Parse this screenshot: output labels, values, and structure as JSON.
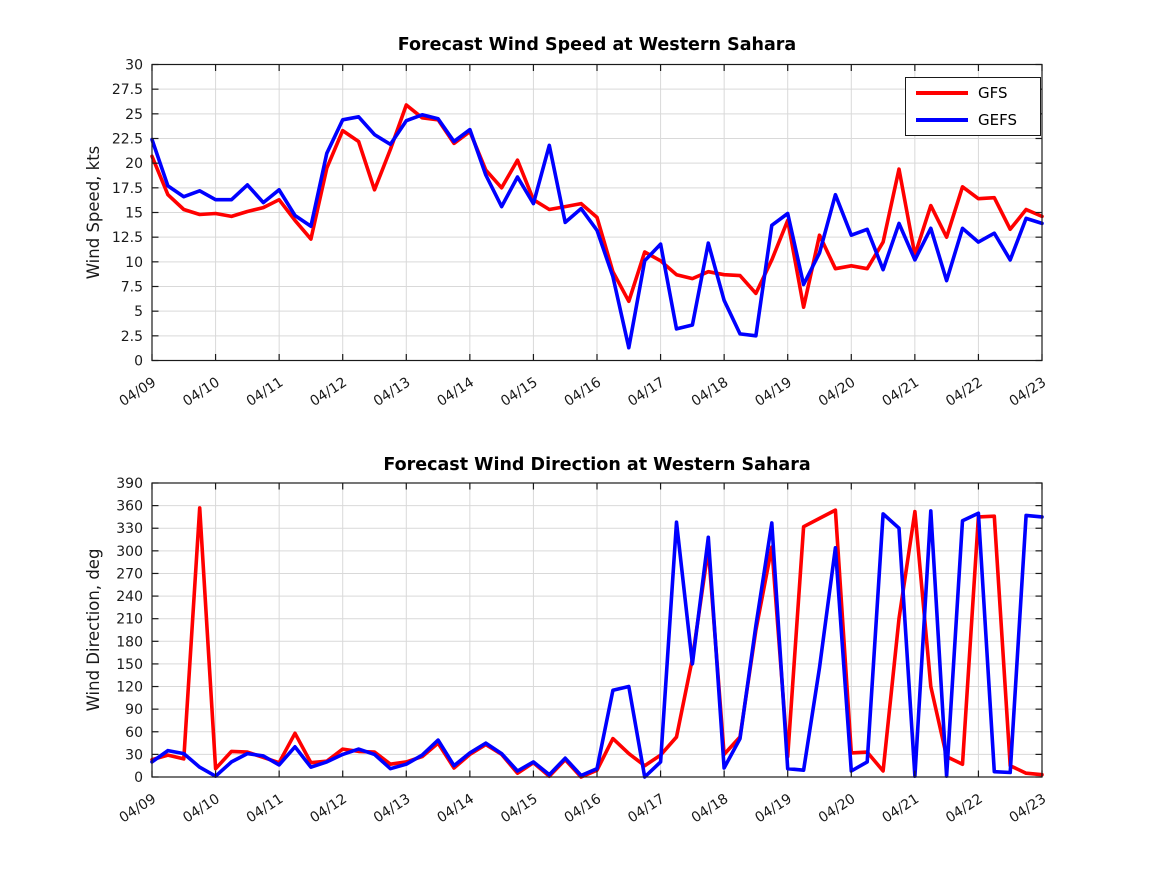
{
  "figure": {
    "background": "#ffffff",
    "accent_red": "#FF0000",
    "accent_blue": "#0000FF"
  },
  "chart_data": [
    {
      "type": "line",
      "title": "Forecast Wind Speed at Western Sahara",
      "ylabel": "Wind Speed, kts",
      "xlabel": "",
      "ylim": [
        0,
        30
      ],
      "ytick_labels": [
        "0",
        "2.5",
        "5",
        "7.5",
        "10",
        "12.5",
        "15",
        "17.5",
        "20",
        "22.5",
        "25",
        "27.5",
        "30"
      ],
      "x_tick_labels": [
        "04/09",
        "04/10",
        "04/11",
        "04/12",
        "04/13",
        "04/14",
        "04/15",
        "04/16",
        "04/17",
        "04/18",
        "04/19",
        "04/20",
        "04/21",
        "04/22",
        "04/23"
      ],
      "time_step_hours": 6,
      "grid": true,
      "legend": {
        "position": "top-right",
        "entries": [
          {
            "label": "GFS",
            "color": "#FF0000"
          },
          {
            "label": "GEFS",
            "color": "#0000FF"
          }
        ]
      },
      "series": [
        {
          "name": "GFS",
          "color": "#FF0000",
          "values": [
            20.7,
            16.8,
            15.3,
            14.8,
            14.9,
            14.6,
            15.1,
            15.5,
            16.3,
            14.2,
            12.3,
            19.5,
            23.3,
            22.2,
            17.3,
            21.4,
            25.9,
            24.6,
            24.4,
            22.0,
            23.2,
            19.3,
            17.5,
            20.3,
            16.3,
            15.3,
            15.6,
            15.9,
            14.5,
            9.0,
            6.0,
            11.0,
            10.1,
            8.7,
            8.3,
            9.0,
            8.7,
            8.6,
            6.8,
            10.2,
            14.2,
            5.4,
            12.7,
            9.3,
            9.6,
            9.3,
            12.0,
            19.4,
            10.7,
            15.7,
            12.5,
            17.6,
            16.4,
            16.5,
            13.3,
            15.3,
            14.6
          ]
        },
        {
          "name": "GEFS",
          "color": "#0000FF",
          "values": [
            22.4,
            17.7,
            16.6,
            17.2,
            16.3,
            16.3,
            17.8,
            16.0,
            17.3,
            14.7,
            13.6,
            21.0,
            24.4,
            24.7,
            22.9,
            21.9,
            24.3,
            24.9,
            24.5,
            22.2,
            23.4,
            18.8,
            15.6,
            18.6,
            15.9,
            21.8,
            14.0,
            15.4,
            13.2,
            8.5,
            1.3,
            10.1,
            11.8,
            3.2,
            3.6,
            11.9,
            6.1,
            2.7,
            2.5,
            13.7,
            14.9,
            7.7,
            10.9,
            16.8,
            12.7,
            13.3,
            9.2,
            13.9,
            10.2,
            13.4,
            8.1,
            13.4,
            12.0,
            12.9,
            10.2,
            14.4,
            13.9
          ]
        }
      ]
    },
    {
      "type": "line",
      "title": "Forecast Wind Direction at Western Sahara",
      "ylabel": "Wind Direction, deg",
      "xlabel": "",
      "ylim": [
        0,
        390
      ],
      "ytick_labels": [
        "0",
        "30",
        "60",
        "90",
        "120",
        "150",
        "180",
        "210",
        "240",
        "270",
        "300",
        "330",
        "360",
        "390"
      ],
      "x_tick_labels": [
        "04/09",
        "04/10",
        "04/11",
        "04/12",
        "04/13",
        "04/14",
        "04/15",
        "04/16",
        "04/17",
        "04/18",
        "04/19",
        "04/20",
        "04/21",
        "04/22",
        "04/23"
      ],
      "time_step_hours": 6,
      "grid": true,
      "series": [
        {
          "name": "GFS",
          "color": "#FF0000",
          "values": [
            23,
            29,
            24,
            357,
            11,
            34,
            33,
            26,
            19,
            58,
            19,
            21,
            37,
            34,
            33,
            17,
            20,
            27,
            45,
            12,
            30,
            43,
            30,
            5,
            19,
            1,
            23,
            0,
            9,
            51,
            31,
            15,
            29,
            53,
            157,
            303,
            30,
            53,
            195,
            305,
            27,
            332,
            343,
            354,
            32,
            33,
            8,
            210,
            352,
            120,
            27,
            17,
            345,
            346,
            15,
            5,
            3
          ]
        },
        {
          "name": "GEFS",
          "color": "#0000FF",
          "values": [
            20,
            35,
            31,
            13,
            1,
            20,
            31,
            28,
            16,
            40,
            13,
            20,
            30,
            37,
            30,
            11,
            17,
            29,
            49,
            15,
            32,
            45,
            31,
            8,
            20,
            3,
            25,
            2,
            11,
            115,
            120,
            0,
            20,
            338,
            150,
            318,
            12,
            51,
            201,
            337,
            11,
            9,
            145,
            304,
            8,
            20,
            349,
            330,
            1,
            353,
            1,
            340,
            350,
            7,
            6,
            347,
            345
          ]
        }
      ]
    }
  ]
}
